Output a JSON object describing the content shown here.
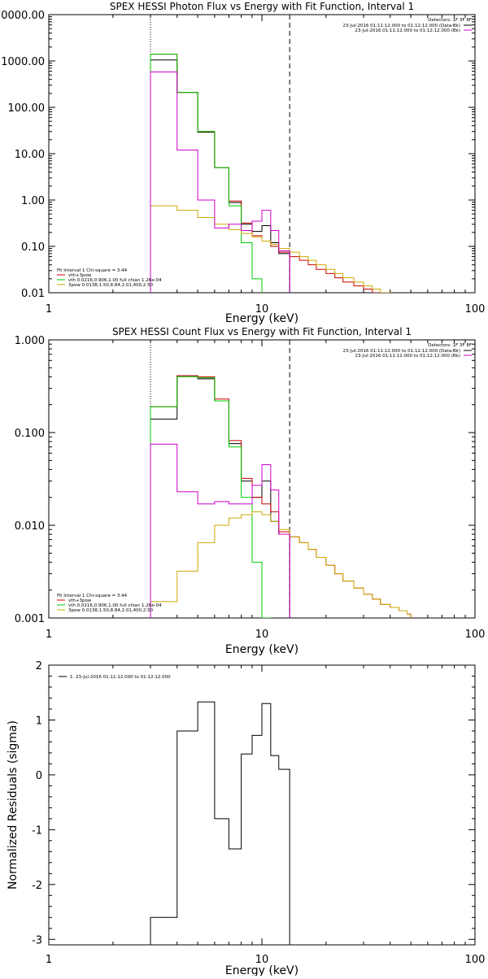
{
  "chart_data": [
    {
      "type": "line",
      "title": "SPEX HESSI Photon Flux vs Energy with Fit Function, Interval 1",
      "xlabel": "Energy (keV)",
      "ylabel": "",
      "xscale": "log",
      "yscale": "log",
      "xlim": [
        1,
        100
      ],
      "ylim": [
        0.01,
        10000
      ],
      "x_tick_labels": [
        "1",
        "10",
        "100"
      ],
      "y_tick_labels": [
        "0.01",
        "0.10",
        "1.00",
        "10.00",
        "100.00",
        "1000.00",
        "0000.00"
      ],
      "vlines": [
        {
          "x": 3,
          "style": "dotted"
        },
        {
          "x": 13.5,
          "style": "dashed"
        }
      ],
      "legend_top": {
        "header": "Detectors: 1F 3F 8F",
        "entries": [
          {
            "label": "23-Jul-2016 01:11:12.000 to 01:12:12.000 (Data-Bk)",
            "color": "#000000"
          },
          {
            "label": "23-Jul-2016 01:11:12.000 to 01:12:12.000 (Bk)",
            "color": "#cc00cc"
          }
        ]
      },
      "legend_bottom": {
        "header": "Fit Interval 1   Chi-square = 3.44",
        "entries": [
          {
            "label": "vth+3pow",
            "color": "#cc0000"
          },
          {
            "label": "vth 0.0216,0.906,1.00  full chian 1.26e-04",
            "color": "#00cc00"
          },
          {
            "label": "3pow 0.0138,1.50,8.84,2.01,400,2.50",
            "color": "#ccaa00"
          }
        ]
      },
      "bin_edges": [
        3.0,
        4.0,
        5.0,
        6.0,
        7.0,
        8.0,
        9.0,
        10.0,
        11.0,
        12.0,
        13.5,
        15.0,
        16.5,
        18.0,
        20.0,
        22.0,
        24.0,
        27.0,
        30.0,
        33.0,
        36.0,
        40.0
      ],
      "series": [
        {
          "name": "Data-Bk",
          "color": "#000000",
          "values": [
            1050,
            210,
            29,
            5.0,
            0.88,
            0.3,
            0.21,
            0.28,
            0.12,
            0.07
          ]
        },
        {
          "name": "vth+3pow",
          "color": "#cc0000",
          "values": [
            1400,
            210,
            30,
            5.0,
            0.95,
            0.32,
            0.17,
            0.13,
            0.1,
            0.075,
            0.06,
            0.05,
            0.04,
            0.032,
            0.026,
            0.021,
            0.017,
            0.014,
            0.012,
            0.01,
            0.009
          ]
        },
        {
          "name": "vth",
          "color": "#00cc00",
          "values": [
            1400,
            210,
            30,
            5.0,
            0.75,
            0.12,
            0.02,
            0.004
          ]
        },
        {
          "name": "3pow",
          "color": "#ccaa00",
          "values": [
            0.75,
            0.6,
            0.42,
            0.3,
            0.23,
            0.19,
            0.16,
            0.13,
            0.11,
            0.09,
            0.075,
            0.06,
            0.05,
            0.04,
            0.032,
            0.026,
            0.021,
            0.017,
            0.014,
            0.012,
            0.01
          ]
        },
        {
          "name": "Bk",
          "color": "#cc00cc",
          "values": [
            580,
            12,
            1.0,
            0.25,
            0.3,
            0.22,
            0.35,
            0.6,
            0.22,
            0.08
          ]
        }
      ]
    },
    {
      "type": "line",
      "title": "SPEX HESSI Count Flux vs Energy with Fit Function, Interval 1",
      "xlabel": "Energy (keV)",
      "ylabel": "",
      "xscale": "log",
      "yscale": "log",
      "xlim": [
        1,
        100
      ],
      "ylim": [
        0.001,
        1.0
      ],
      "x_tick_labels": [
        "1",
        "10",
        "100"
      ],
      "y_tick_labels": [
        "0.001",
        "0.010",
        "0.100",
        "1.000"
      ],
      "vlines": [
        {
          "x": 3,
          "style": "dotted"
        },
        {
          "x": 13.5,
          "style": "dashed"
        }
      ],
      "legend_top": {
        "header": "Detectors: 1F 3F 8F",
        "entries": [
          {
            "label": "23-Jul-2016 01:11:12.000 to 01:12:12.000 (Data-Bk)",
            "color": "#000000"
          },
          {
            "label": "23-Jul-2016 01:11:12.000 to 01:12:12.000 (Bk)",
            "color": "#cc00cc"
          }
        ]
      },
      "legend_bottom": {
        "header": "Fit Interval 1   Chi-square = 3.44",
        "entries": [
          {
            "label": "vth+3pow",
            "color": "#cc0000"
          },
          {
            "label": "vth 0.0216,0.906,1.00  full chian 1.26e-04",
            "color": "#00cc00"
          },
          {
            "label": "3pow 0.0138,1.50,8.84,2.01,400,2.50",
            "color": "#ccaa00"
          }
        ]
      },
      "bin_edges": [
        3.0,
        4.0,
        5.0,
        6.0,
        7.0,
        8.0,
        9.0,
        10.0,
        11.0,
        12.0,
        13.5,
        15.0,
        16.5,
        18.0,
        20.0,
        22.0,
        24.0,
        27.0,
        30.0,
        33.0,
        36.0,
        40.0,
        44.0,
        48.0,
        50.0
      ],
      "series": [
        {
          "name": "Data-Bk",
          "color": "#000000",
          "values": [
            0.14,
            0.41,
            0.38,
            0.22,
            0.076,
            0.03,
            0.02,
            0.03,
            0.011,
            0.008
          ]
        },
        {
          "name": "vth+3pow",
          "color": "#cc0000",
          "values": [
            0.19,
            0.41,
            0.4,
            0.23,
            0.082,
            0.032,
            0.02,
            0.017,
            0.014,
            0.0085,
            0.0075,
            0.0065,
            0.0055,
            0.0045,
            0.0037,
            0.003,
            0.0025,
            0.0021,
            0.0018,
            0.0016,
            0.0014,
            0.0013,
            0.0012,
            0.0011
          ]
        },
        {
          "name": "vth",
          "color": "#00cc00",
          "values": [
            0.19,
            0.4,
            0.39,
            0.22,
            0.07,
            0.02,
            0.004,
            0.001
          ]
        },
        {
          "name": "3pow",
          "color": "#ccaa00",
          "values": [
            0.0015,
            0.0032,
            0.0065,
            0.01,
            0.012,
            0.013,
            0.014,
            0.013,
            0.011,
            0.009,
            0.0075,
            0.0065,
            0.0055,
            0.0045,
            0.0037,
            0.003,
            0.0025,
            0.0021,
            0.0018,
            0.0016,
            0.0014,
            0.0013,
            0.0012,
            0.0011
          ]
        },
        {
          "name": "Bk",
          "color": "#cc00cc",
          "values": [
            0.075,
            0.023,
            0.017,
            0.018,
            0.017,
            0.017,
            0.027,
            0.045,
            0.024,
            0.008
          ]
        }
      ]
    },
    {
      "type": "line",
      "title": "",
      "xlabel": "Energy (keV)",
      "ylabel": "Normalized Residuals (sigma)",
      "xscale": "log",
      "yscale": "linear",
      "xlim": [
        1,
        100
      ],
      "ylim": [
        -3.1,
        2.0
      ],
      "x_tick_labels": [
        "1",
        "10",
        "100"
      ],
      "y_tick_labels": [
        "-3",
        "-2",
        "-1",
        "0",
        "1",
        "2"
      ],
      "legend_top": {
        "entries": [
          {
            "label": "1. 23-Jul-2016 01:11:12.000 to 01:12:12.000",
            "color": "#000000"
          }
        ]
      },
      "bin_edges": [
        3.0,
        4.0,
        5.0,
        6.0,
        7.0,
        8.0,
        9.0,
        10.0,
        11.0,
        12.0,
        13.5
      ],
      "series": [
        {
          "name": "1. 23-Jul-2016 01:11:12.000 to 01:12:12.000",
          "color": "#000000",
          "values": [
            -2.6,
            0.8,
            1.33,
            -0.8,
            -1.35,
            0.38,
            0.72,
            1.3,
            0.35,
            0.1
          ]
        }
      ]
    }
  ]
}
